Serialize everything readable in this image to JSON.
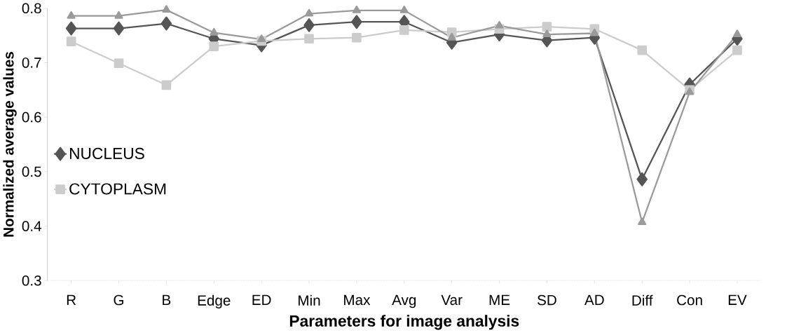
{
  "chart_data": {
    "type": "line",
    "xlabel": "Parameters for image analysis",
    "ylabel": "Normalized average values",
    "categories": [
      "R",
      "G",
      "B",
      "Edge",
      "ED",
      "Min",
      "Max",
      "Avg",
      "Var",
      "ME",
      "SD",
      "AD",
      "Diff",
      "Con",
      "EV"
    ],
    "series": [
      {
        "name": "NUCLEUS",
        "color": "#555555",
        "marker": "diamond",
        "values": [
          0.763,
          0.763,
          0.772,
          0.744,
          0.732,
          0.769,
          0.775,
          0.775,
          0.737,
          0.752,
          0.741,
          0.746,
          0.486,
          0.66,
          0.744
        ]
      },
      {
        "name": "CYTOPLASM",
        "color": "#cccccc",
        "marker": "square",
        "values": [
          0.739,
          0.699,
          0.659,
          0.73,
          0.74,
          0.744,
          0.746,
          0.76,
          0.756,
          0.762,
          0.766,
          0.762,
          0.723,
          0.65,
          0.723
        ]
      },
      {
        "color": "#9a9a9a",
        "marker": "triangle",
        "values": [
          0.786,
          0.786,
          0.797,
          0.755,
          0.743,
          0.79,
          0.796,
          0.796,
          0.746,
          0.768,
          0.752,
          0.754,
          0.407,
          0.646,
          0.752
        ]
      }
    ],
    "ylim": [
      0.3,
      0.8
    ],
    "yticks": [
      0.3,
      0.4,
      0.5,
      0.6,
      0.7,
      0.8
    ],
    "legend": "left",
    "grid": false
  }
}
